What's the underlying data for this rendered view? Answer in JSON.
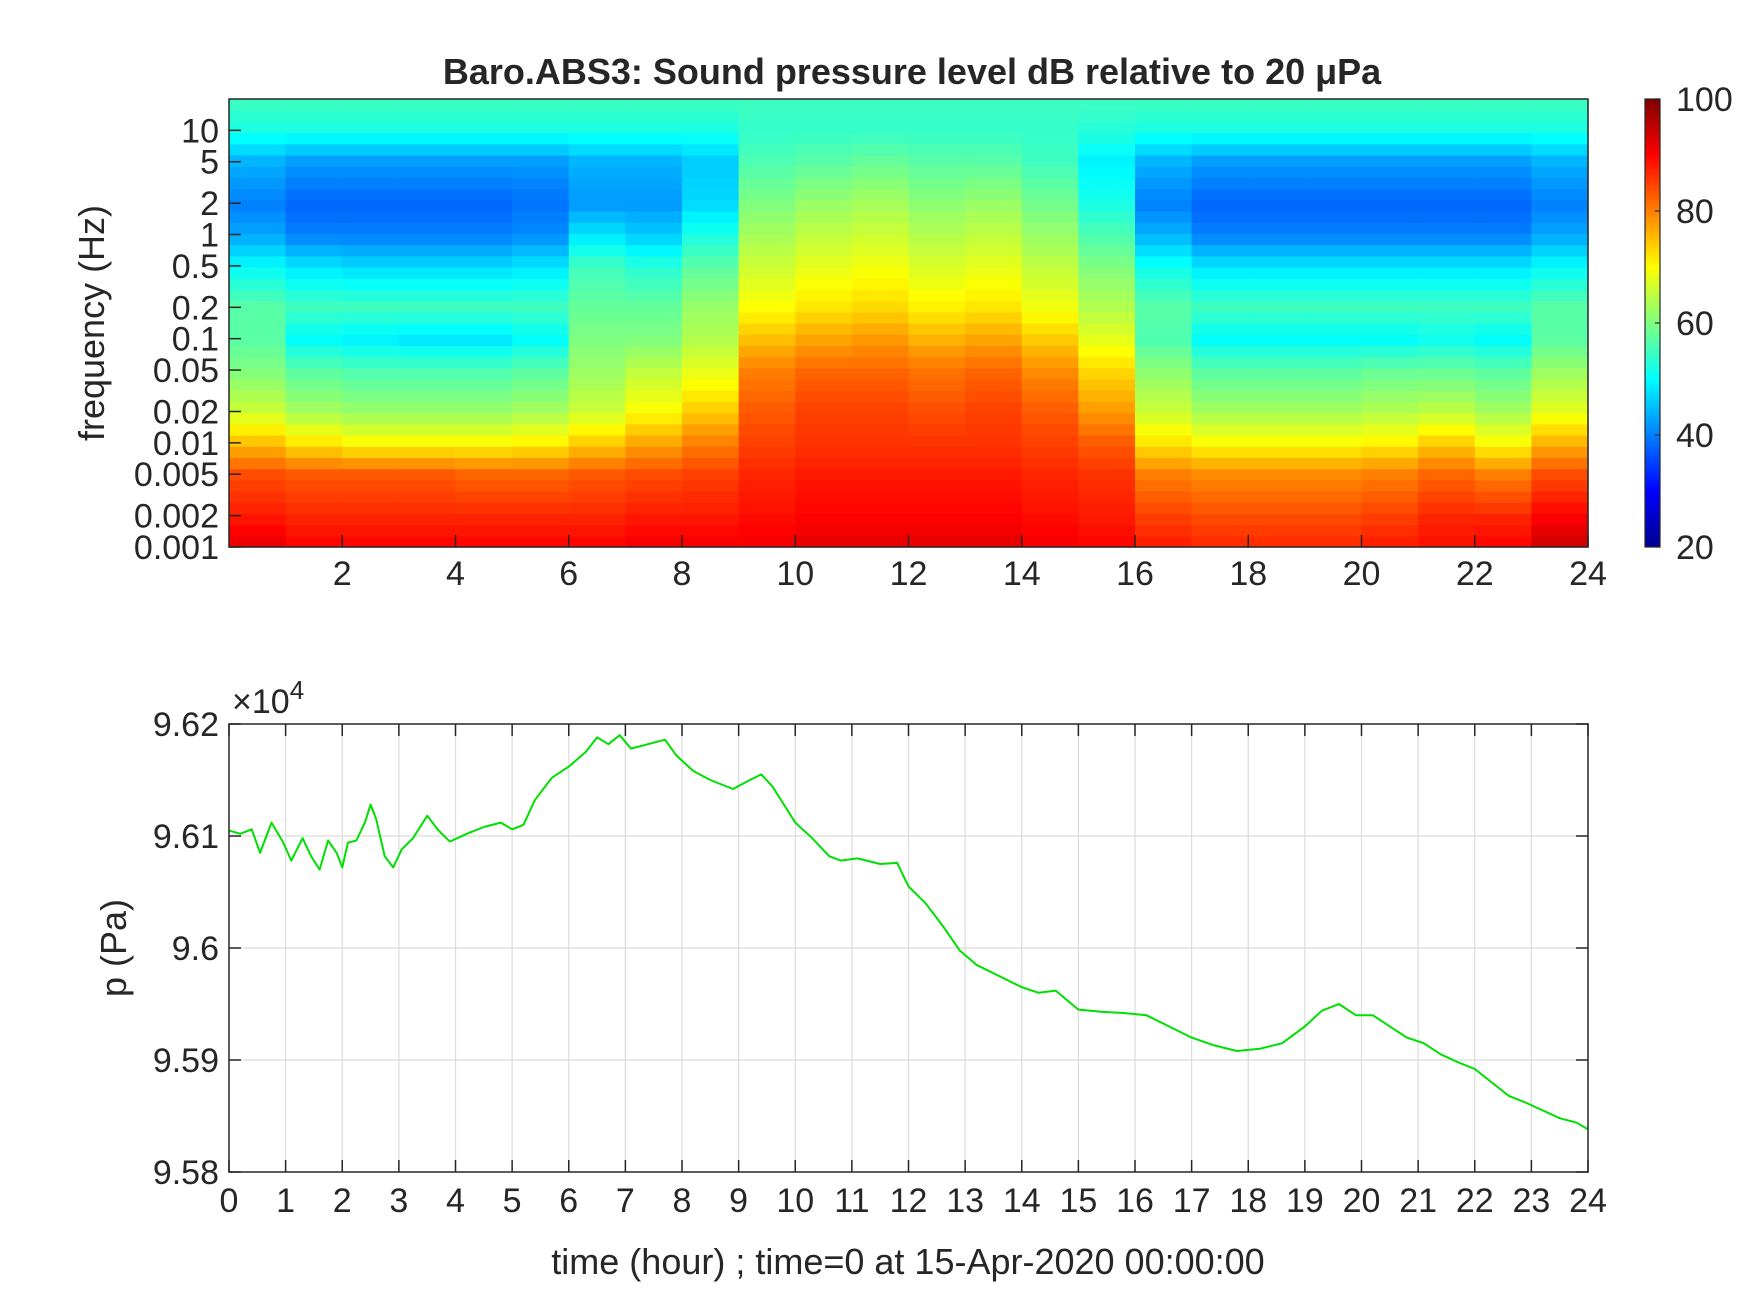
{
  "chart_data": [
    {
      "type": "heatmap",
      "title": "Baro.ABS3: Sound pressure level dB relative to 20 μPa",
      "ylabel": "frequency (Hz)",
      "xlabel": "",
      "x_range": [
        0,
        24
      ],
      "x_ticks": [
        2,
        4,
        6,
        8,
        10,
        12,
        14,
        16,
        18,
        20,
        22,
        24
      ],
      "y_scale": "log",
      "y_range": [
        0.001,
        20
      ],
      "y_ticks": [
        0.001,
        0.002,
        0.005,
        0.01,
        0.02,
        0.05,
        0.1,
        0.2,
        0.5,
        1,
        2,
        5,
        10
      ],
      "y_tick_labels": [
        "0.001",
        "0.002",
        "0.005",
        "0.01",
        "0.02",
        "0.05",
        "0.1",
        "0.2",
        "0.5",
        "1",
        "2",
        "5",
        "10"
      ],
      "colormap": "jet",
      "colorbar": {
        "range": [
          20,
          100
        ],
        "ticks": [
          20,
          40,
          60,
          80,
          100
        ],
        "tick_labels": [
          "20",
          "40",
          "60",
          "80",
          "100"
        ],
        "placement": "right"
      },
      "time_hours": [
        0.5,
        1.5,
        2.5,
        3.5,
        4.5,
        5.5,
        6.5,
        7.5,
        8.5,
        9.5,
        10.5,
        11.5,
        12.5,
        13.5,
        14.5,
        15.5,
        16.5,
        17.5,
        18.5,
        19.5,
        20.5,
        21.5,
        22.5,
        23.5
      ],
      "frequency_Hz": [
        0.001,
        0.002,
        0.005,
        0.01,
        0.02,
        0.05,
        0.1,
        0.2,
        0.5,
        1,
        2,
        5,
        10,
        20
      ],
      "spl_dB": [
        [
          92,
          88,
          84,
          75,
          66,
          60,
          57,
          57,
          50,
          43,
          40,
          44,
          52,
          55
        ],
        [
          90,
          87,
          83,
          72,
          63,
          57,
          50,
          55,
          48,
          40,
          38,
          42,
          52,
          55
        ],
        [
          90,
          87,
          83,
          70,
          62,
          56,
          49,
          55,
          47,
          40,
          38,
          42,
          52,
          55
        ],
        [
          90,
          87,
          83,
          70,
          62,
          56,
          48,
          55,
          47,
          40,
          38,
          42,
          52,
          55
        ],
        [
          90,
          87,
          82,
          70,
          62,
          56,
          48,
          55,
          47,
          40,
          38,
          42,
          52,
          55
        ],
        [
          90,
          87,
          82,
          71,
          63,
          57,
          50,
          55,
          48,
          41,
          39,
          42,
          52,
          55
        ],
        [
          90,
          87,
          83,
          74,
          66,
          62,
          60,
          58,
          55,
          48,
          42,
          44,
          52,
          55
        ],
        [
          91,
          88,
          84,
          77,
          70,
          65,
          60,
          58,
          53,
          46,
          42,
          44,
          52,
          55
        ],
        [
          91,
          88,
          85,
          80,
          74,
          68,
          64,
          62,
          57,
          52,
          47,
          46,
          52,
          55
        ],
        [
          91,
          89,
          87,
          85,
          83,
          80,
          75,
          70,
          66,
          63,
          60,
          56,
          54,
          55
        ],
        [
          92,
          90,
          88,
          86,
          85,
          82,
          77,
          72,
          68,
          65,
          62,
          57,
          54,
          55
        ],
        [
          92,
          90,
          88,
          86,
          85,
          82,
          78,
          73,
          69,
          66,
          63,
          58,
          54,
          55
        ],
        [
          92,
          90,
          88,
          86,
          84,
          81,
          76,
          71,
          67,
          64,
          61,
          57,
          54,
          55
        ],
        [
          92,
          90,
          88,
          86,
          85,
          82,
          77,
          72,
          68,
          65,
          62,
          57,
          54,
          55
        ],
        [
          91,
          89,
          87,
          85,
          83,
          79,
          74,
          69,
          65,
          62,
          59,
          55,
          54,
          55
        ],
        [
          90,
          88,
          86,
          83,
          78,
          73,
          68,
          64,
          60,
          56,
          52,
          49,
          53,
          55
        ],
        [
          88,
          85,
          80,
          72,
          66,
          61,
          56,
          57,
          51,
          44,
          40,
          44,
          52,
          55
        ],
        [
          87,
          84,
          79,
          70,
          63,
          57,
          50,
          55,
          48,
          40,
          38,
          42,
          52,
          55
        ],
        [
          87,
          84,
          79,
          70,
          63,
          57,
          50,
          55,
          48,
          40,
          38,
          42,
          52,
          55
        ],
        [
          87,
          84,
          79,
          70,
          63,
          57,
          50,
          55,
          48,
          40,
          38,
          42,
          52,
          55
        ],
        [
          88,
          85,
          80,
          71,
          64,
          58,
          50,
          55,
          48,
          40,
          38,
          42,
          52,
          55
        ],
        [
          89,
          87,
          82,
          74,
          65,
          58,
          51,
          55,
          48,
          40,
          38,
          42,
          52,
          55
        ],
        [
          90,
          87,
          80,
          70,
          63,
          57,
          50,
          55,
          48,
          40,
          38,
          42,
          52,
          55
        ],
        [
          94,
          90,
          84,
          76,
          68,
          62,
          57,
          57,
          50,
          43,
          40,
          44,
          52,
          55
        ]
      ]
    },
    {
      "type": "line",
      "title": "",
      "xlabel": "time (hour) ; time=0 at 15-Apr-2020 00:00:00",
      "ylabel": "p (Pa)",
      "y_exponent_label": "×10",
      "y_exponent_power": "4",
      "xlim": [
        0,
        24
      ],
      "ylim": [
        95800,
        96200
      ],
      "x_ticks": [
        0,
        1,
        2,
        3,
        4,
        5,
        6,
        7,
        8,
        9,
        10,
        11,
        12,
        13,
        14,
        15,
        16,
        17,
        18,
        19,
        20,
        21,
        22,
        23,
        24
      ],
      "x_tick_labels": [
        "0",
        "1",
        "2",
        "3",
        "4",
        "5",
        "6",
        "7",
        "8",
        "9",
        "10",
        "11",
        "12",
        "13",
        "14",
        "15",
        "16",
        "17",
        "18",
        "19",
        "20",
        "21",
        "22",
        "23",
        "24"
      ],
      "y_ticks": [
        95800,
        95900,
        96000,
        96100,
        96200
      ],
      "y_tick_labels": [
        "9.58",
        "9.59",
        "9.6",
        "9.61",
        "9.62"
      ],
      "grid": true,
      "series": [
        {
          "color": "#00e000",
          "x": [
            0,
            0.2,
            0.4,
            0.55,
            0.75,
            0.95,
            1.1,
            1.3,
            1.45,
            1.6,
            1.75,
            1.9,
            2.0,
            2.1,
            2.25,
            2.4,
            2.5,
            2.6,
            2.75,
            2.9,
            3.05,
            3.25,
            3.5,
            3.7,
            3.9,
            4.2,
            4.5,
            4.8,
            5.0,
            5.2,
            5.4,
            5.7,
            6.0,
            6.3,
            6.5,
            6.7,
            6.9,
            7.1,
            7.4,
            7.7,
            7.9,
            8.2,
            8.5,
            8.9,
            9.2,
            9.4,
            9.6,
            9.8,
            10.0,
            10.3,
            10.6,
            10.8,
            11.1,
            11.5,
            11.8,
            12.0,
            12.3,
            12.6,
            12.9,
            13.2,
            13.6,
            14.0,
            14.3,
            14.6,
            15.0,
            15.4,
            15.8,
            16.2,
            16.6,
            17.0,
            17.4,
            17.8,
            18.2,
            18.6,
            19.0,
            19.3,
            19.6,
            19.9,
            20.2,
            20.5,
            20.8,
            21.1,
            21.4,
            21.7,
            22.0,
            22.3,
            22.6,
            22.9,
            23.2,
            23.5,
            23.8,
            24.0
          ],
          "y": [
            96105,
            96102,
            96106,
            96085,
            96112,
            96095,
            96078,
            96098,
            96082,
            96070,
            96096,
            96085,
            96072,
            96094,
            96096,
            96112,
            96128,
            96115,
            96082,
            96072,
            96088,
            96098,
            96118,
            96105,
            96095,
            96102,
            96108,
            96112,
            96106,
            96110,
            96132,
            96152,
            96162,
            96175,
            96188,
            96182,
            96190,
            96178,
            96182,
            96186,
            96172,
            96158,
            96150,
            96142,
            96150,
            96155,
            96144,
            96128,
            96112,
            96098,
            96082,
            96078,
            96080,
            96075,
            96076,
            96055,
            96040,
            96020,
            95998,
            95985,
            95975,
            95965,
            95960,
            95962,
            95945,
            95943,
            95942,
            95940,
            95930,
            95920,
            95913,
            95908,
            95910,
            95915,
            95930,
            95944,
            95950,
            95940,
            95940,
            95930,
            95920,
            95915,
            95905,
            95898,
            95892,
            95880,
            95868,
            95862,
            95855,
            95848,
            95844,
            95838
          ]
        }
      ]
    }
  ]
}
